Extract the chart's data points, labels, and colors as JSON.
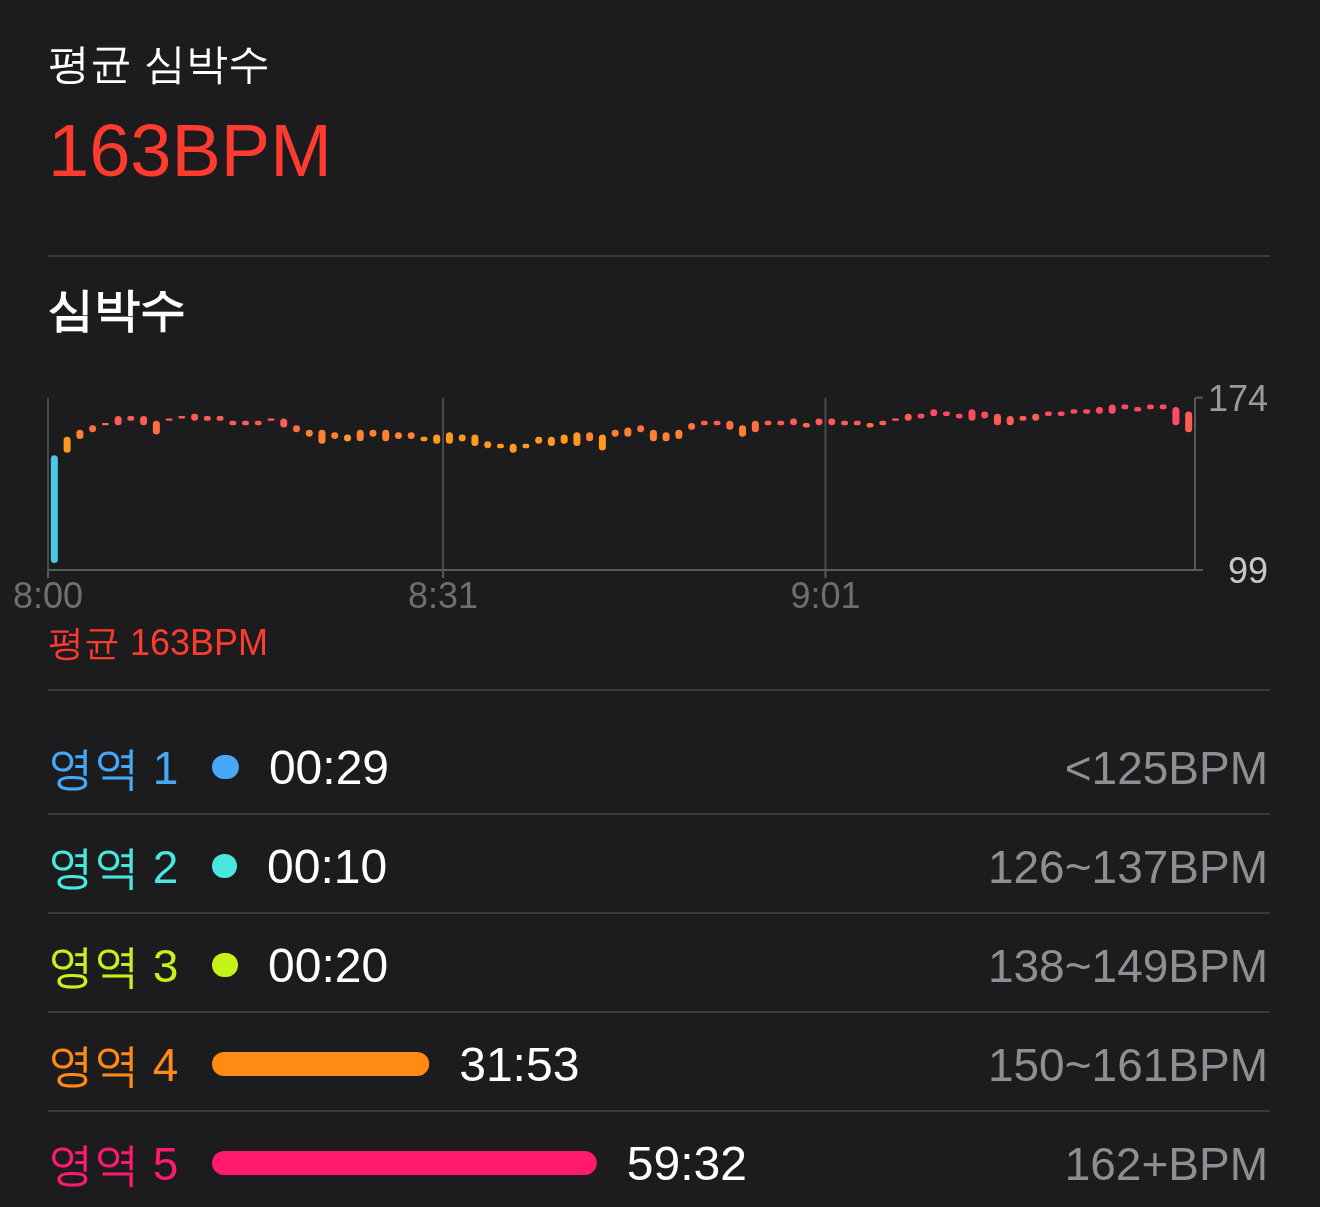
{
  "chart_data": [
    {
      "type": "other",
      "title": "평균 심박수",
      "annotations": [
        "163BPM"
      ]
    },
    {
      "type": "bar",
      "title": "심박수",
      "x": [
        8.0083,
        8.025,
        8.0417,
        8.0583,
        8.075,
        8.0917,
        8.1083,
        8.125,
        8.1417,
        8.1583,
        8.175,
        8.1917,
        8.2083,
        8.225,
        8.2417,
        8.2583,
        8.275,
        8.2917,
        8.3083,
        8.325,
        8.3417,
        8.3583,
        8.375,
        8.3917,
        8.4083,
        8.425,
        8.4417,
        8.4583,
        8.475,
        8.4917,
        8.5083,
        8.525,
        8.5417,
        8.5583,
        8.575,
        8.5917,
        8.6083,
        8.625,
        8.6417,
        8.6583,
        8.675,
        8.6917,
        8.7083,
        8.725,
        8.7417,
        8.7583,
        8.775,
        8.7917,
        8.8083,
        8.825,
        8.8417,
        8.8583,
        8.875,
        8.8917,
        8.9083,
        8.925,
        8.9417,
        8.9583,
        8.975,
        8.9917,
        9.0083,
        9.025,
        9.0417,
        9.0583,
        9.075,
        9.0917,
        9.1083,
        9.125,
        9.1417,
        9.1583,
        9.175,
        9.1917,
        9.2083,
        9.225,
        9.2417,
        9.2583,
        9.275,
        9.2917,
        9.3083,
        9.325,
        9.3417,
        9.3583,
        9.375,
        9.3917,
        9.4083,
        9.425,
        9.4417,
        9.4583,
        9.475,
        9.4917
      ],
      "base": [
        102,
        150,
        156,
        159,
        162,
        162,
        164,
        162,
        158,
        164,
        165,
        164,
        164,
        164,
        162,
        162,
        162,
        164,
        161,
        159,
        157,
        154,
        156,
        155,
        155,
        157,
        155,
        156,
        156,
        155,
        154,
        154,
        155,
        153,
        152,
        152,
        150,
        152,
        154,
        153,
        154,
        153,
        155,
        151,
        157,
        157,
        159,
        155,
        155,
        156,
        160,
        162,
        162,
        160,
        157,
        159,
        162,
        162,
        162,
        161,
        162,
        162,
        162,
        162,
        161,
        162,
        164,
        164,
        165,
        166,
        166,
        165,
        164,
        165,
        162,
        162,
        164,
        164,
        166,
        166,
        167,
        167,
        167,
        167,
        169,
        168,
        169,
        169,
        162,
        159
      ],
      "values": [
        47,
        7,
        4,
        3,
        1,
        4,
        2,
        4,
        6,
        1,
        1,
        3,
        2,
        2,
        2,
        2,
        2,
        1,
        4,
        3,
        3,
        6,
        3,
        3,
        5,
        3,
        5,
        3,
        3,
        2,
        4,
        5,
        3,
        5,
        3,
        2,
        4,
        2,
        3,
        4,
        4,
        6,
        4,
        7,
        3,
        4,
        3,
        5,
        4,
        4,
        3,
        2,
        2,
        4,
        5,
        5,
        2,
        2,
        3,
        2,
        3,
        3,
        2,
        2,
        2,
        2,
        1,
        3,
        2,
        3,
        2,
        2,
        5,
        3,
        5,
        4,
        2,
        3,
        2,
        2,
        2,
        2,
        3,
        4,
        2,
        2,
        2,
        2,
        8,
        9
      ],
      "colors": [
        "#4cc8e4",
        "#ff9a20",
        "#ff8232",
        "#ff6e45",
        "#ff6e45",
        "#ff5c54",
        "#ff5c54",
        "#ff5c54",
        "#ff6e45",
        "#ff5c54",
        "#ff5c54",
        "#ff5c54",
        "#ff5c54",
        "#ff5c54",
        "#ff5c54",
        "#ff5c54",
        "#ff5c54",
        "#ff5c54",
        "#ff5c54",
        "#ff6e45",
        "#ff8232",
        "#ff8232",
        "#ff8232",
        "#ff9a20",
        "#ff8232",
        "#ff8232",
        "#ff8232",
        "#ff8232",
        "#ff8232",
        "#ff9a20",
        "#ff9a20",
        "#ff9a20",
        "#ff9a20",
        "#ff9a20",
        "#ff9a20",
        "#ff9a20",
        "#ff9a20",
        "#ff9a20",
        "#ff9a20",
        "#ff9a20",
        "#ff9a20",
        "#ff9a20",
        "#ff8232",
        "#ff9a20",
        "#ff8232",
        "#ff8232",
        "#ff6e45",
        "#ff8232",
        "#ff8232",
        "#ff8232",
        "#ff6e45",
        "#ff5c54",
        "#ff5c54",
        "#ff6e45",
        "#ff8232",
        "#ff6e45",
        "#ff5c54",
        "#ff5c54",
        "#ff5c54",
        "#ff6e45",
        "#ff5c54",
        "#ff5c54",
        "#ff5c54",
        "#ff5c54",
        "#ff6e45",
        "#ff5c54",
        "#ff5c54",
        "#ff5c54",
        "#ff4a62",
        "#ff4a62",
        "#ff4a62",
        "#ff4a62",
        "#ff4a62",
        "#ff4a62",
        "#ff5c54",
        "#ff5c54",
        "#ff5c54",
        "#ff5c54",
        "#ff4a62",
        "#ff4a62",
        "#ff4a62",
        "#ff4a62",
        "#ff4a62",
        "#ff4a62",
        "#ff4a62",
        "#ff4a62",
        "#ff4a62",
        "#ff4a62",
        "#ff4a62",
        "#ff5c54"
      ],
      "xlim": [
        8,
        9.5
      ],
      "xticks": [
        {
          "value": 8,
          "label": "8:00"
        },
        {
          "value": 8.5167,
          "label": "8:31"
        },
        {
          "value": 9.0167,
          "label": "9:01"
        }
      ],
      "ylim": [
        99,
        174
      ],
      "yticks": [
        99,
        174
      ],
      "grid": "x",
      "annotations": [
        "평균 163BPM"
      ]
    },
    {
      "type": "bar",
      "orientation": "horizontal",
      "categories": [
        "영역 1",
        "영역 2",
        "영역 3",
        "영역 4",
        "영역 5"
      ],
      "values": [
        0.4833,
        0.1667,
        0.3333,
        31.8833,
        59.5333
      ],
      "value_labels": [
        "00:29",
        "00:10",
        "00:20",
        "31:53",
        "59:32"
      ],
      "colors": [
        "#46a8f7",
        "#49e8de",
        "#c6f21c",
        "#ff8a14",
        "#ff1a6e"
      ],
      "annotations": [
        "<125BPM",
        "126~137BPM",
        "138~149BPM",
        "150~161BPM",
        "162+BPM"
      ]
    }
  ]
}
